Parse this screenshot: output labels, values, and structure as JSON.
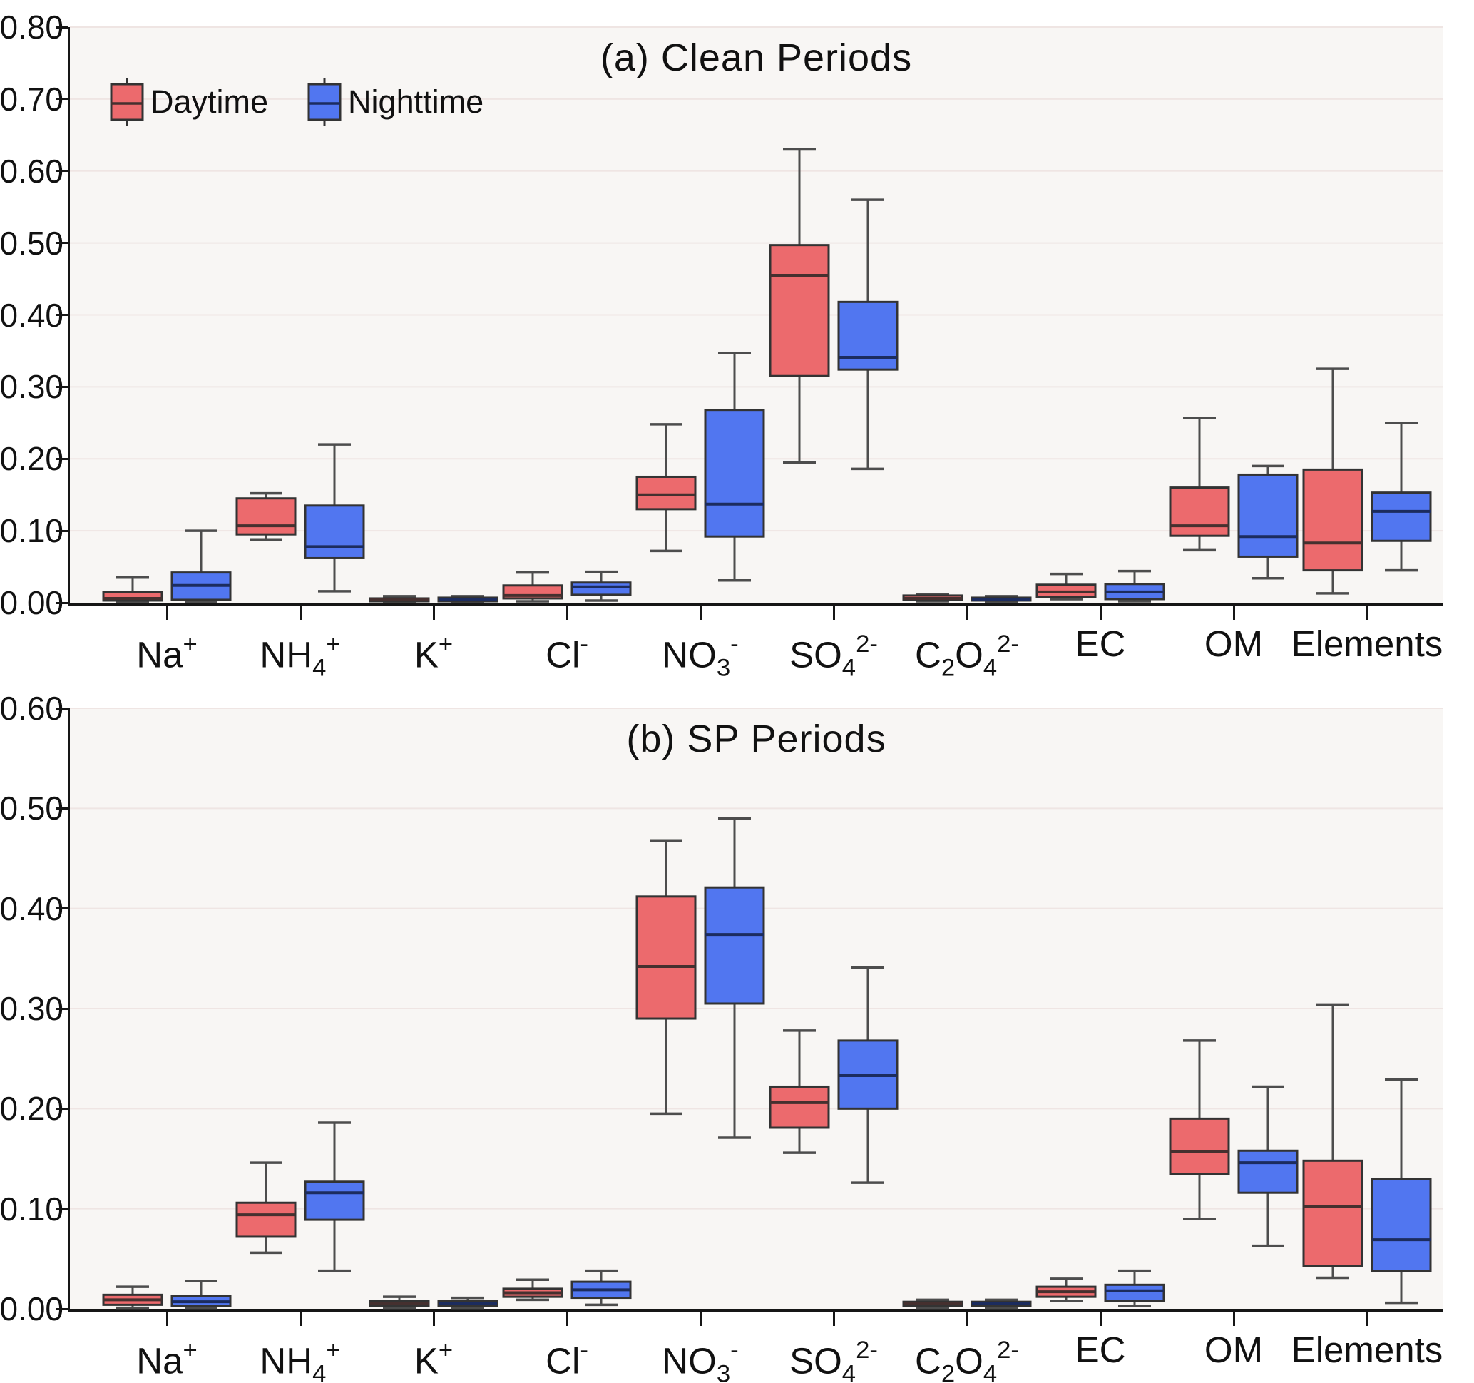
{
  "chart_data": [
    {
      "type": "boxplot",
      "panel": "a",
      "title": "(a) Clean Periods",
      "ylim": [
        0,
        0.8
      ],
      "ytick_interval": 0.1,
      "yticks": [
        "0.00",
        "0.10",
        "0.20",
        "0.30",
        "0.40",
        "0.50",
        "0.60",
        "0.70",
        "0.80"
      ],
      "grid": true,
      "categories": [
        "Na+",
        "NH4+",
        "K+",
        "Cl-",
        "NO3-",
        "SO4 2-",
        "C2O4 2-",
        "EC",
        "OM",
        "Elements"
      ],
      "categories_html": [
        "Na<sup>+</sup>",
        "NH<sub>4</sub><sup>+</sup>",
        "K<sup>+</sup>",
        "Cl<sup>-</sup>",
        "NO<sub>3</sub><sup>-</sup>",
        "SO<sub>4</sub><sup>2-</sup>",
        "C<sub>2</sub>O<sub>4</sub><sup>2-</sup>",
        "EC",
        "OM",
        "Elements"
      ],
      "legend": {
        "position": "top-left",
        "entries": [
          "Daytime",
          "Nighttime"
        ]
      },
      "box_format": [
        "whisker_low",
        "q1",
        "median",
        "q3",
        "whisker_high"
      ],
      "series": [
        {
          "name": "Daytime",
          "color": "#ec6a6d",
          "median_color": "#45302f",
          "values": [
            [
              0.001,
              0.003,
              0.006,
              0.015,
              0.035
            ],
            [
              0.088,
              0.095,
              0.107,
              0.145,
              0.152
            ],
            [
              0.001,
              0.002,
              0.004,
              0.006,
              0.009
            ],
            [
              0.002,
              0.006,
              0.01,
              0.024,
              0.042
            ],
            [
              0.072,
              0.13,
              0.15,
              0.175,
              0.248
            ],
            [
              0.195,
              0.315,
              0.455,
              0.497,
              0.63
            ],
            [
              0.002,
              0.004,
              0.006,
              0.01,
              0.012
            ],
            [
              0.005,
              0.008,
              0.015,
              0.025,
              0.04
            ],
            [
              0.073,
              0.093,
              0.107,
              0.16,
              0.257
            ],
            [
              0.013,
              0.045,
              0.083,
              0.185,
              0.325
            ]
          ]
        },
        {
          "name": "Nighttime",
          "color": "#5176f0",
          "median_color": "#1c2c5e",
          "values": [
            [
              0.001,
              0.004,
              0.024,
              0.042,
              0.1
            ],
            [
              0.016,
              0.062,
              0.078,
              0.135,
              0.22
            ],
            [
              0.001,
              0.002,
              0.004,
              0.007,
              0.009
            ],
            [
              0.003,
              0.011,
              0.022,
              0.028,
              0.043
            ],
            [
              0.031,
              0.092,
              0.137,
              0.268,
              0.347
            ],
            [
              0.186,
              0.324,
              0.341,
              0.418,
              0.56
            ],
            [
              0.001,
              0.003,
              0.005,
              0.007,
              0.009
            ],
            [
              0.002,
              0.005,
              0.015,
              0.026,
              0.044
            ],
            [
              0.034,
              0.064,
              0.092,
              0.178,
              0.19
            ],
            [
              0.045,
              0.086,
              0.127,
              0.153,
              0.25
            ]
          ]
        }
      ]
    },
    {
      "type": "boxplot",
      "panel": "b",
      "title": "(b) SP Periods",
      "ylim": [
        0,
        0.6
      ],
      "ytick_interval": 0.1,
      "yticks": [
        "0.00",
        "0.10",
        "0.20",
        "0.30",
        "0.40",
        "0.50",
        "0.60"
      ],
      "grid": true,
      "categories": [
        "Na+",
        "NH4+",
        "K+",
        "Cl-",
        "NO3-",
        "SO4 2-",
        "C2O4 2-",
        "EC",
        "OM",
        "Elements"
      ],
      "categories_html": [
        "Na<sup>+</sup>",
        "NH<sub>4</sub><sup>+</sup>",
        "K<sup>+</sup>",
        "Cl<sup>-</sup>",
        "NO<sub>3</sub><sup>-</sup>",
        "SO<sub>4</sub><sup>2-</sup>",
        "C<sub>2</sub>O<sub>4</sub><sup>2-</sup>",
        "EC",
        "OM",
        "Elements"
      ],
      "box_format": [
        "whisker_low",
        "q1",
        "median",
        "q3",
        "whisker_high"
      ],
      "series": [
        {
          "name": "Daytime",
          "color": "#ec6a6d",
          "median_color": "#45302f",
          "values": [
            [
              0.001,
              0.004,
              0.009,
              0.014,
              0.022
            ],
            [
              0.056,
              0.072,
              0.094,
              0.106,
              0.146
            ],
            [
              0.001,
              0.003,
              0.005,
              0.008,
              0.012
            ],
            [
              0.009,
              0.012,
              0.016,
              0.02,
              0.029
            ],
            [
              0.195,
              0.29,
              0.342,
              0.412,
              0.468
            ],
            [
              0.156,
              0.181,
              0.206,
              0.222,
              0.278
            ],
            [
              0.001,
              0.003,
              0.005,
              0.007,
              0.009
            ],
            [
              0.008,
              0.012,
              0.017,
              0.022,
              0.03
            ],
            [
              0.09,
              0.135,
              0.157,
              0.19,
              0.268
            ],
            [
              0.031,
              0.043,
              0.102,
              0.148,
              0.304
            ]
          ]
        },
        {
          "name": "Nighttime",
          "color": "#5176f0",
          "median_color": "#1c2c5e",
          "values": [
            [
              0.001,
              0.003,
              0.007,
              0.013,
              0.028
            ],
            [
              0.038,
              0.089,
              0.116,
              0.127,
              0.186
            ],
            [
              0.001,
              0.003,
              0.005,
              0.008,
              0.011
            ],
            [
              0.004,
              0.011,
              0.019,
              0.027,
              0.038
            ],
            [
              0.171,
              0.305,
              0.374,
              0.421,
              0.49
            ],
            [
              0.126,
              0.2,
              0.233,
              0.268,
              0.341
            ],
            [
              0.001,
              0.003,
              0.005,
              0.007,
              0.009
            ],
            [
              0.003,
              0.008,
              0.018,
              0.024,
              0.038
            ],
            [
              0.063,
              0.116,
              0.146,
              0.158,
              0.222
            ],
            [
              0.006,
              0.038,
              0.069,
              0.13,
              0.229
            ]
          ]
        }
      ]
    }
  ],
  "style": {
    "plot_bg": "#f8f6f4",
    "grid_color": "#efe5e3",
    "axis_color": "#161616",
    "box_stroke": "#333333",
    "whisker_color": "#4d4d4d"
  }
}
